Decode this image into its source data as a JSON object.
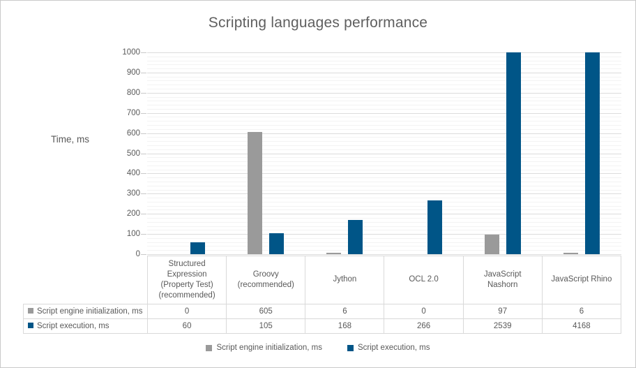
{
  "window": {
    "background": "#ffffff",
    "border_color": "#c9c9c9"
  },
  "chart_data": {
    "type": "bar",
    "title": "Scripting languages performance",
    "ylabel": "Time, ms",
    "xlabel": "",
    "ylim": [
      0,
      1000
    ],
    "y_major_unit": 100,
    "y_minor_unit": 20,
    "y_ticks": [
      "0",
      "100",
      "200",
      "300",
      "400",
      "500",
      "600",
      "700",
      "800",
      "900",
      "1000"
    ],
    "grid": true,
    "legend_position": "bottom",
    "data_table_shown": true,
    "bars_clipped_at_ymax": true,
    "categories": [
      "Structured Expression (Property Test) (recommended)",
      "Groovy (recommended)",
      "Jython",
      "OCL 2.0",
      "JavaScript Nashorn",
      "JavaScript Rhino"
    ],
    "series": [
      {
        "name": "Script engine initialization, ms",
        "color": "#9a9a9a",
        "values": [
          0,
          605,
          6,
          0,
          97,
          6
        ]
      },
      {
        "name": "Script execution, ms",
        "color": "#005587",
        "values": [
          60,
          105,
          168,
          266,
          2539,
          4168
        ]
      }
    ],
    "colors": {
      "grid_major": "#dcdcdc",
      "grid_minor": "#f3f3f3",
      "text": "#595959",
      "table_border": "#d9d9d9"
    }
  }
}
